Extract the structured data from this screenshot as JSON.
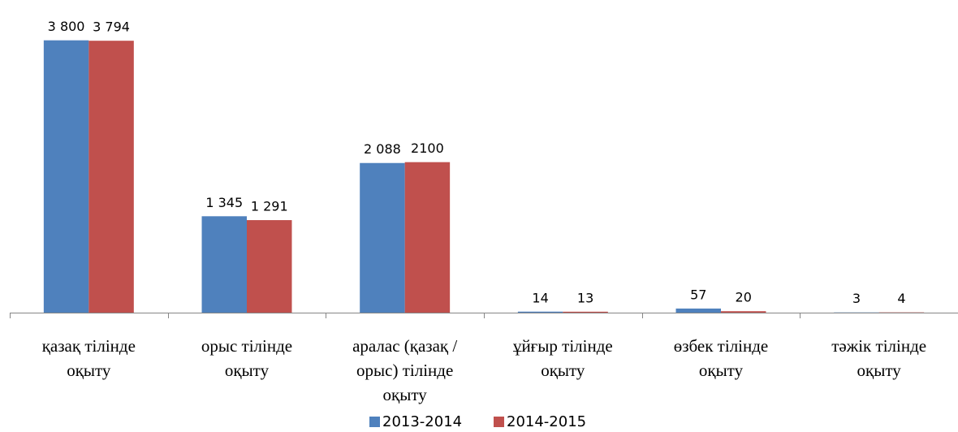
{
  "chart_data": {
    "type": "bar",
    "categories": [
      "қазақ тілінде оқыту",
      "орыс тілінде оқыту",
      "аралас (қазақ /орыс) тілінде оқыту",
      "ұйғыр тілінде оқыту",
      "өзбек тілінде оқыту",
      "тәжік тілінде оқыту"
    ],
    "series": [
      {
        "name": "2013-2014",
        "color": "#4f81bd",
        "values": [
          3800,
          1345,
          2088,
          14,
          57,
          3
        ],
        "value_labels": [
          "3 800",
          "1 345",
          "2 088",
          "14",
          "57",
          "3"
        ]
      },
      {
        "name": "2014-2015",
        "color": "#c0504d",
        "values": [
          3794,
          1291,
          2100,
          13,
          20,
          4
        ],
        "value_labels": [
          "3 794",
          "1 291",
          "2100",
          "13",
          "20",
          "4"
        ]
      }
    ],
    "ylim": [
      0,
      4000
    ],
    "legend": "bottom"
  }
}
